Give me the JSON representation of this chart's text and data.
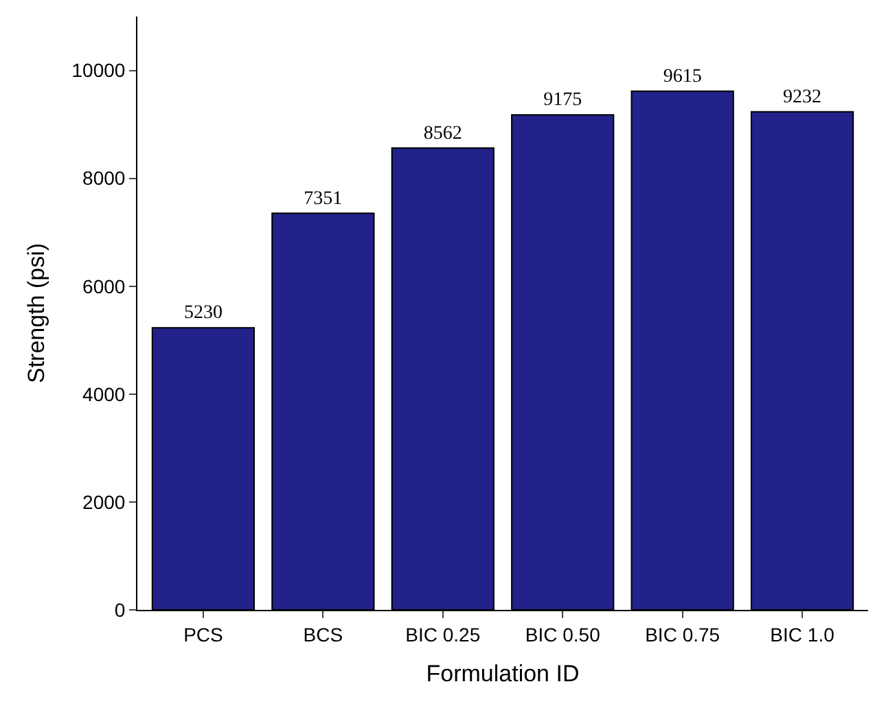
{
  "chart_data": {
    "type": "bar",
    "xlabel": "Formulation ID",
    "ylabel": "Strength (psi)",
    "categories": [
      "PCS",
      "BCS",
      "BIC 0.25",
      "BIC 0.50",
      "BIC 0.75",
      "BIC 1.0"
    ],
    "values": [
      5230,
      7351,
      8562,
      9175,
      9615,
      9232
    ],
    "color": "#22228a",
    "data_labels": true,
    "ylim": [
      0,
      11000
    ],
    "yticks": [
      0,
      2000,
      4000,
      6000,
      8000,
      10000
    ]
  }
}
